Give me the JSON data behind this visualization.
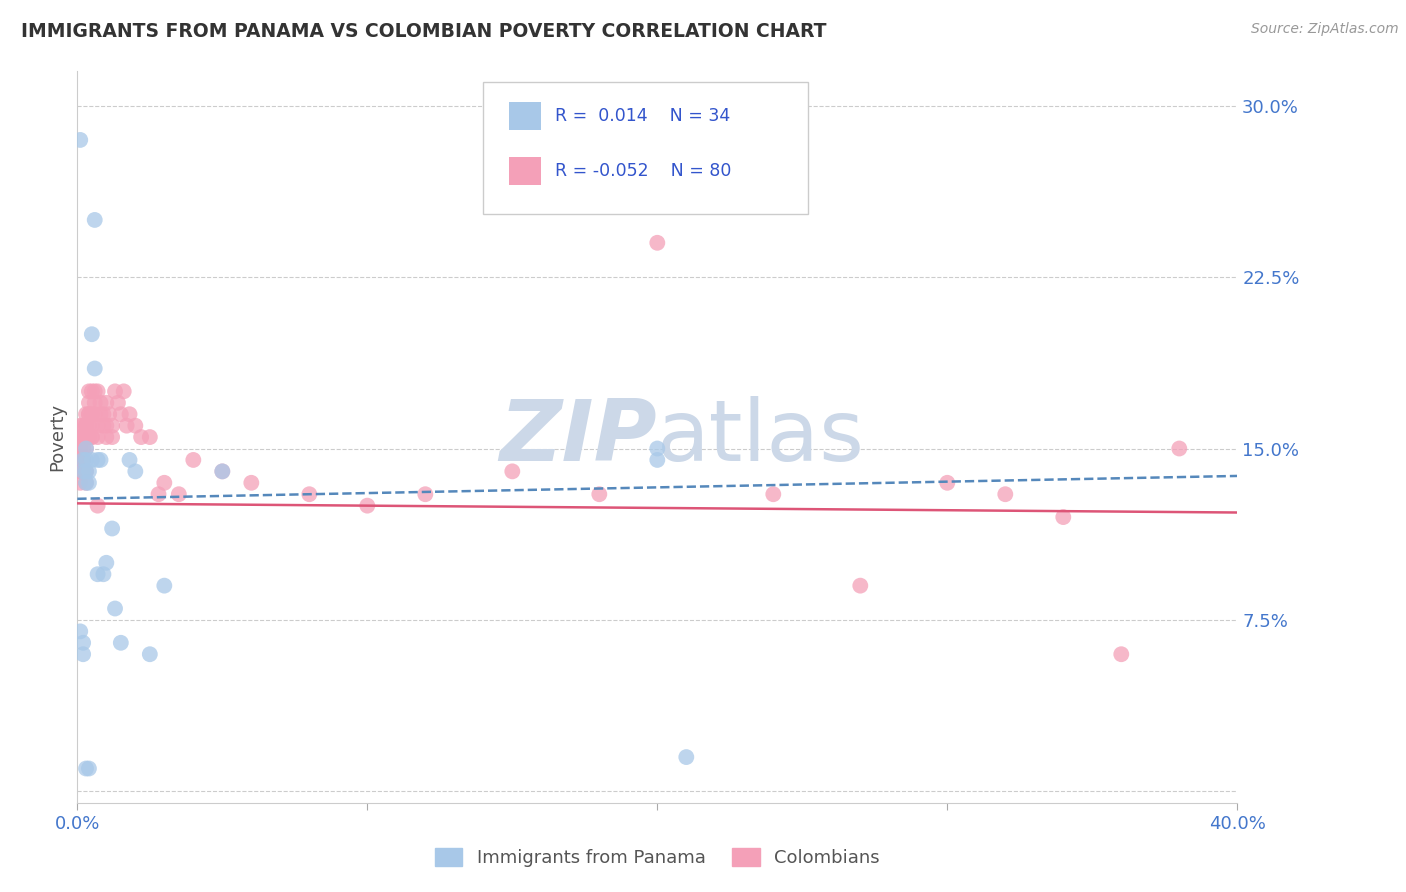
{
  "title": "IMMIGRANTS FROM PANAMA VS COLOMBIAN POVERTY CORRELATION CHART",
  "source": "Source: ZipAtlas.com",
  "ylabel": "Poverty",
  "y_ticks": [
    0.0,
    0.075,
    0.15,
    0.225,
    0.3
  ],
  "y_tick_labels": [
    "",
    "7.5%",
    "15.0%",
    "22.5%",
    "30.0%"
  ],
  "xlim": [
    0.0,
    0.4
  ],
  "ylim": [
    -0.005,
    0.315
  ],
  "blue_color": "#a8c8e8",
  "pink_color": "#f4a0b8",
  "blue_line_color": "#5588bb",
  "pink_line_color": "#dd5577",
  "legend_text_color": "#3355cc",
  "tick_color": "#4477cc",
  "title_color": "#333333",
  "grid_color": "#cccccc",
  "watermark_color": "#ccd8e8",
  "panama_x": [
    0.001,
    0.001,
    0.002,
    0.002,
    0.002,
    0.002,
    0.003,
    0.003,
    0.003,
    0.003,
    0.003,
    0.004,
    0.004,
    0.004,
    0.005,
    0.005,
    0.006,
    0.006,
    0.007,
    0.007,
    0.008,
    0.009,
    0.01,
    0.012,
    0.013,
    0.015,
    0.018,
    0.02,
    0.025,
    0.03,
    0.05,
    0.2,
    0.2,
    0.21
  ],
  "panama_y": [
    0.285,
    0.07,
    0.065,
    0.06,
    0.14,
    0.145,
    0.15,
    0.145,
    0.14,
    0.135,
    0.01,
    0.14,
    0.135,
    0.01,
    0.2,
    0.145,
    0.25,
    0.185,
    0.145,
    0.095,
    0.145,
    0.095,
    0.1,
    0.115,
    0.08,
    0.065,
    0.145,
    0.14,
    0.06,
    0.09,
    0.14,
    0.145,
    0.15,
    0.015
  ],
  "colombian_x": [
    0.001,
    0.001,
    0.001,
    0.001,
    0.001,
    0.001,
    0.001,
    0.001,
    0.002,
    0.002,
    0.002,
    0.002,
    0.002,
    0.002,
    0.002,
    0.002,
    0.003,
    0.003,
    0.003,
    0.003,
    0.003,
    0.003,
    0.003,
    0.003,
    0.004,
    0.004,
    0.004,
    0.004,
    0.004,
    0.004,
    0.005,
    0.005,
    0.005,
    0.005,
    0.005,
    0.006,
    0.006,
    0.006,
    0.007,
    0.007,
    0.007,
    0.007,
    0.008,
    0.008,
    0.009,
    0.009,
    0.01,
    0.01,
    0.01,
    0.011,
    0.012,
    0.012,
    0.013,
    0.014,
    0.015,
    0.016,
    0.017,
    0.018,
    0.02,
    0.022,
    0.025,
    0.028,
    0.03,
    0.035,
    0.04,
    0.05,
    0.06,
    0.08,
    0.1,
    0.12,
    0.15,
    0.18,
    0.2,
    0.24,
    0.27,
    0.3,
    0.32,
    0.34,
    0.36,
    0.38
  ],
  "colombian_y": [
    0.145,
    0.15,
    0.135,
    0.14,
    0.145,
    0.16,
    0.155,
    0.15,
    0.145,
    0.14,
    0.155,
    0.16,
    0.15,
    0.145,
    0.155,
    0.15,
    0.165,
    0.16,
    0.155,
    0.15,
    0.155,
    0.16,
    0.14,
    0.135,
    0.17,
    0.165,
    0.155,
    0.175,
    0.16,
    0.165,
    0.175,
    0.155,
    0.165,
    0.155,
    0.16,
    0.175,
    0.165,
    0.17,
    0.175,
    0.125,
    0.16,
    0.155,
    0.165,
    0.17,
    0.16,
    0.165,
    0.17,
    0.16,
    0.155,
    0.165,
    0.16,
    0.155,
    0.175,
    0.17,
    0.165,
    0.175,
    0.16,
    0.165,
    0.16,
    0.155,
    0.155,
    0.13,
    0.135,
    0.13,
    0.145,
    0.14,
    0.135,
    0.13,
    0.125,
    0.13,
    0.14,
    0.13,
    0.24,
    0.13,
    0.09,
    0.135,
    0.13,
    0.12,
    0.06,
    0.15
  ],
  "blue_line_y_start": 0.128,
  "blue_line_y_end": 0.138,
  "pink_line_y_start": 0.126,
  "pink_line_y_end": 0.122
}
